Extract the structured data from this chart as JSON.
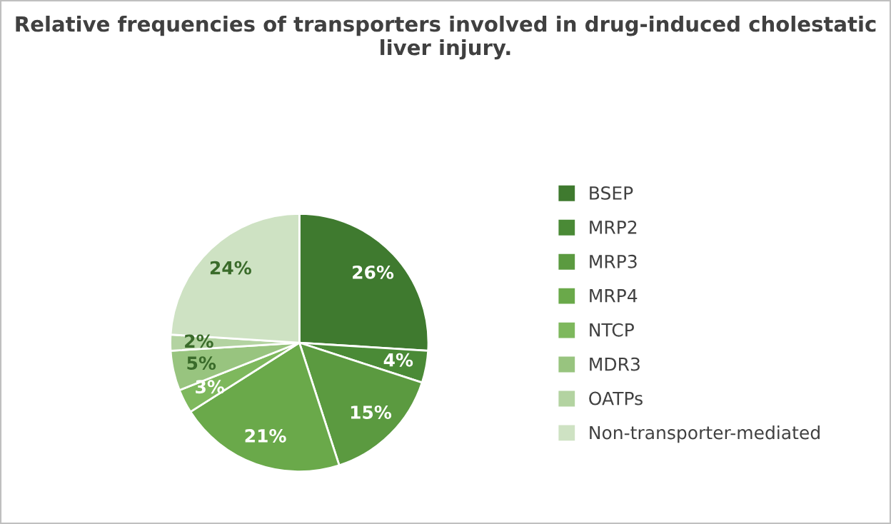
{
  "chart_data": {
    "type": "pie",
    "title": "Relative frequencies of transporters involved in drug-induced cholestatic liver injury.",
    "categories": [
      "BSEP",
      "MRP2",
      "MRP3",
      "MRP4",
      "NTCP",
      "MDR3",
      "OATPs",
      "Non-transporter-mediated"
    ],
    "values": [
      26,
      4,
      15,
      21,
      3,
      5,
      2,
      24
    ],
    "value_labels": [
      "26%",
      "4%",
      "15%",
      "21%",
      "3%",
      "5%",
      "2%",
      "24%"
    ],
    "colors": [
      "#3f7a2f",
      "#4a8a36",
      "#5b9a40",
      "#6aa94a",
      "#7eb85d",
      "#98c47f",
      "#b3d3a1",
      "#cee2c3"
    ],
    "legend": "right"
  }
}
